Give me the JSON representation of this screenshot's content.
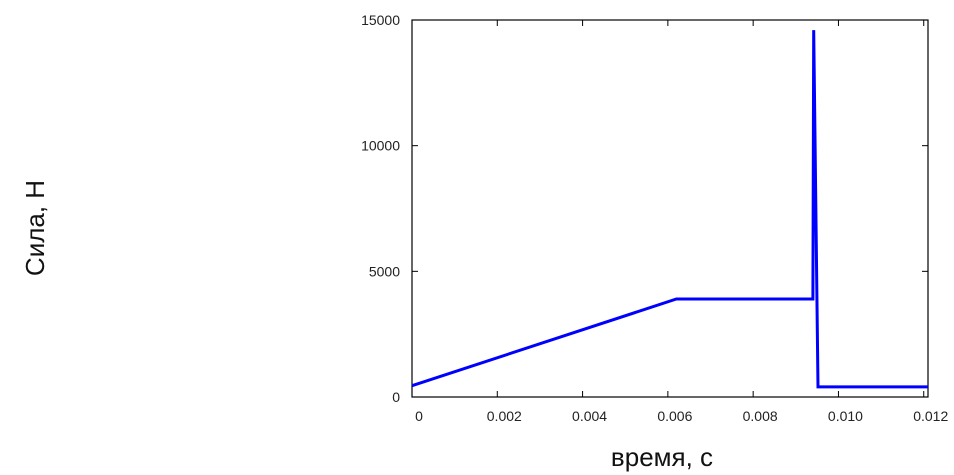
{
  "chart_data": {
    "type": "line",
    "title": "",
    "xlabel": "время, с",
    "ylabel": "Сила, Н",
    "xlim": [
      0,
      0.0121
    ],
    "ylim": [
      0,
      15000
    ],
    "x_ticks": [
      0,
      0.002,
      0.004,
      0.006,
      0.008,
      0.01,
      0.012
    ],
    "x_tick_labels": [
      "0",
      "0.002",
      "0.004",
      "0.006",
      "0.008",
      "0.010",
      "0.012"
    ],
    "y_ticks": [
      0,
      5000,
      10000,
      15000
    ],
    "y_tick_labels": [
      "0",
      "5000",
      "10000",
      "15000"
    ],
    "grid": false,
    "legend": "none",
    "series": [
      {
        "color": "#0000ff",
        "x": [
          0,
          0.0062,
          0.0094,
          0.00942,
          0.00952,
          0.0121
        ],
        "y": [
          450,
          3900,
          3900,
          14600,
          400,
          400
        ]
      }
    ]
  }
}
